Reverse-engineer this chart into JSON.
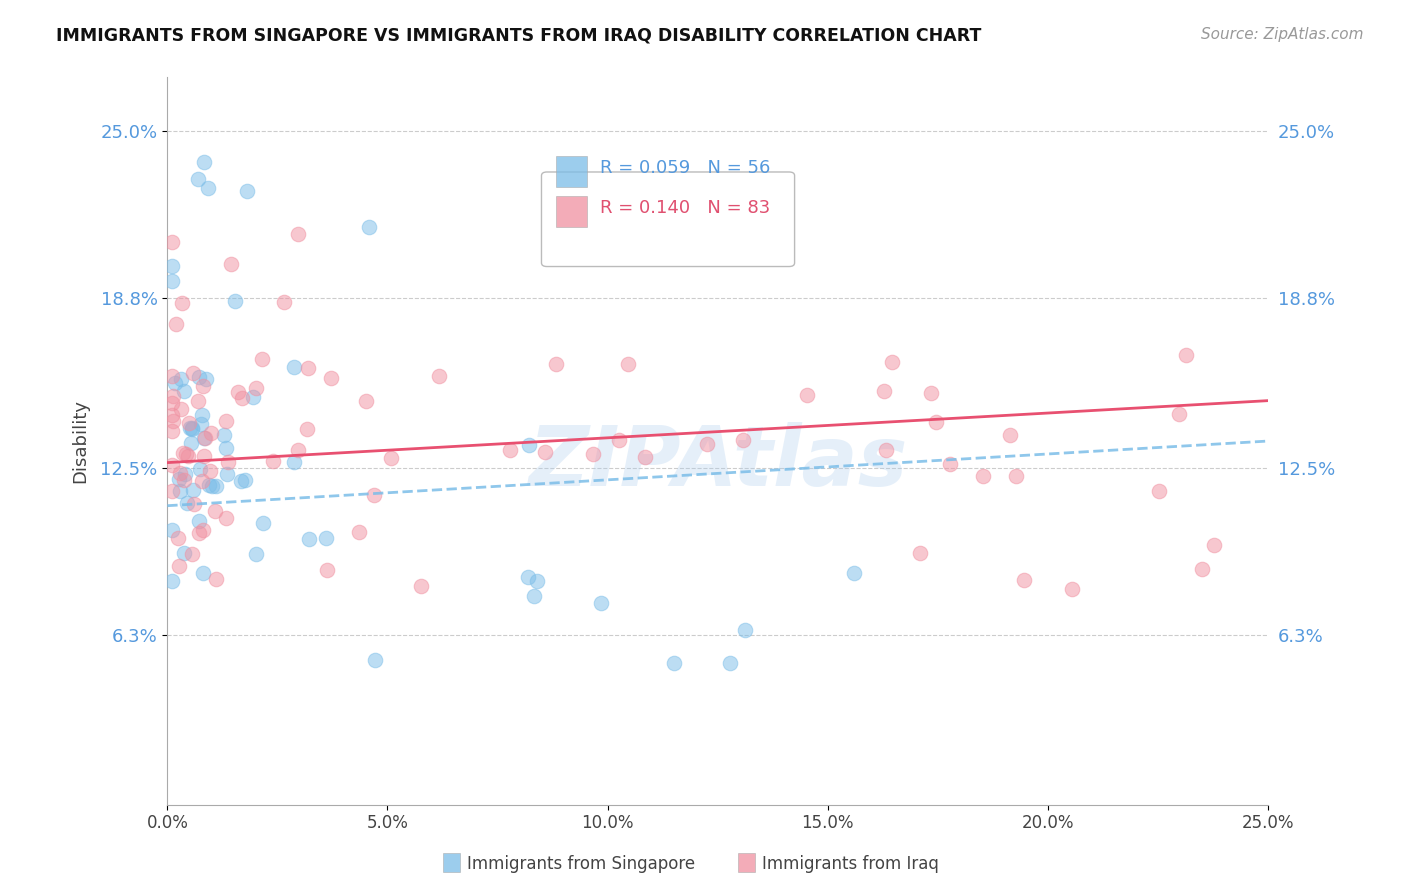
{
  "title": "IMMIGRANTS FROM SINGAPORE VS IMMIGRANTS FROM IRAQ DISABILITY CORRELATION CHART",
  "source": "Source: ZipAtlas.com",
  "ylabel": "Disability",
  "ytick_labels": [
    "25.0%",
    "18.8%",
    "12.5%",
    "6.3%"
  ],
  "ytick_values": [
    0.25,
    0.188,
    0.125,
    0.063
  ],
  "xlim": [
    0.0,
    0.25
  ],
  "ylim": [
    0.0,
    0.27
  ],
  "xtick_positions": [
    0.0,
    0.05,
    0.1,
    0.15,
    0.2,
    0.25
  ],
  "xtick_labels": [
    "0.0%",
    "5.0%",
    "10.0%",
    "15.0%",
    "20.0%",
    "25.0%"
  ],
  "color_singapore": "#7BBDE8",
  "color_iraq": "#F090A0",
  "color_sg_trend": "#7BBDE8",
  "color_iq_trend": "#E85070",
  "sg_trend_start_y": 0.111,
  "sg_trend_end_y": 0.135,
  "iq_trend_start_y": 0.127,
  "iq_trend_end_y": 0.15,
  "watermark": "ZIPAtlas",
  "background_color": "#FFFFFF",
  "grid_color": "#CCCCCC",
  "legend_r1_text": "R = 0.059",
  "legend_n1_text": "N = 56",
  "legend_r2_text": "R = 0.140",
  "legend_n2_text": "N = 83",
  "bottom_label1": "Immigrants from Singapore",
  "bottom_label2": "Immigrants from Iraq"
}
